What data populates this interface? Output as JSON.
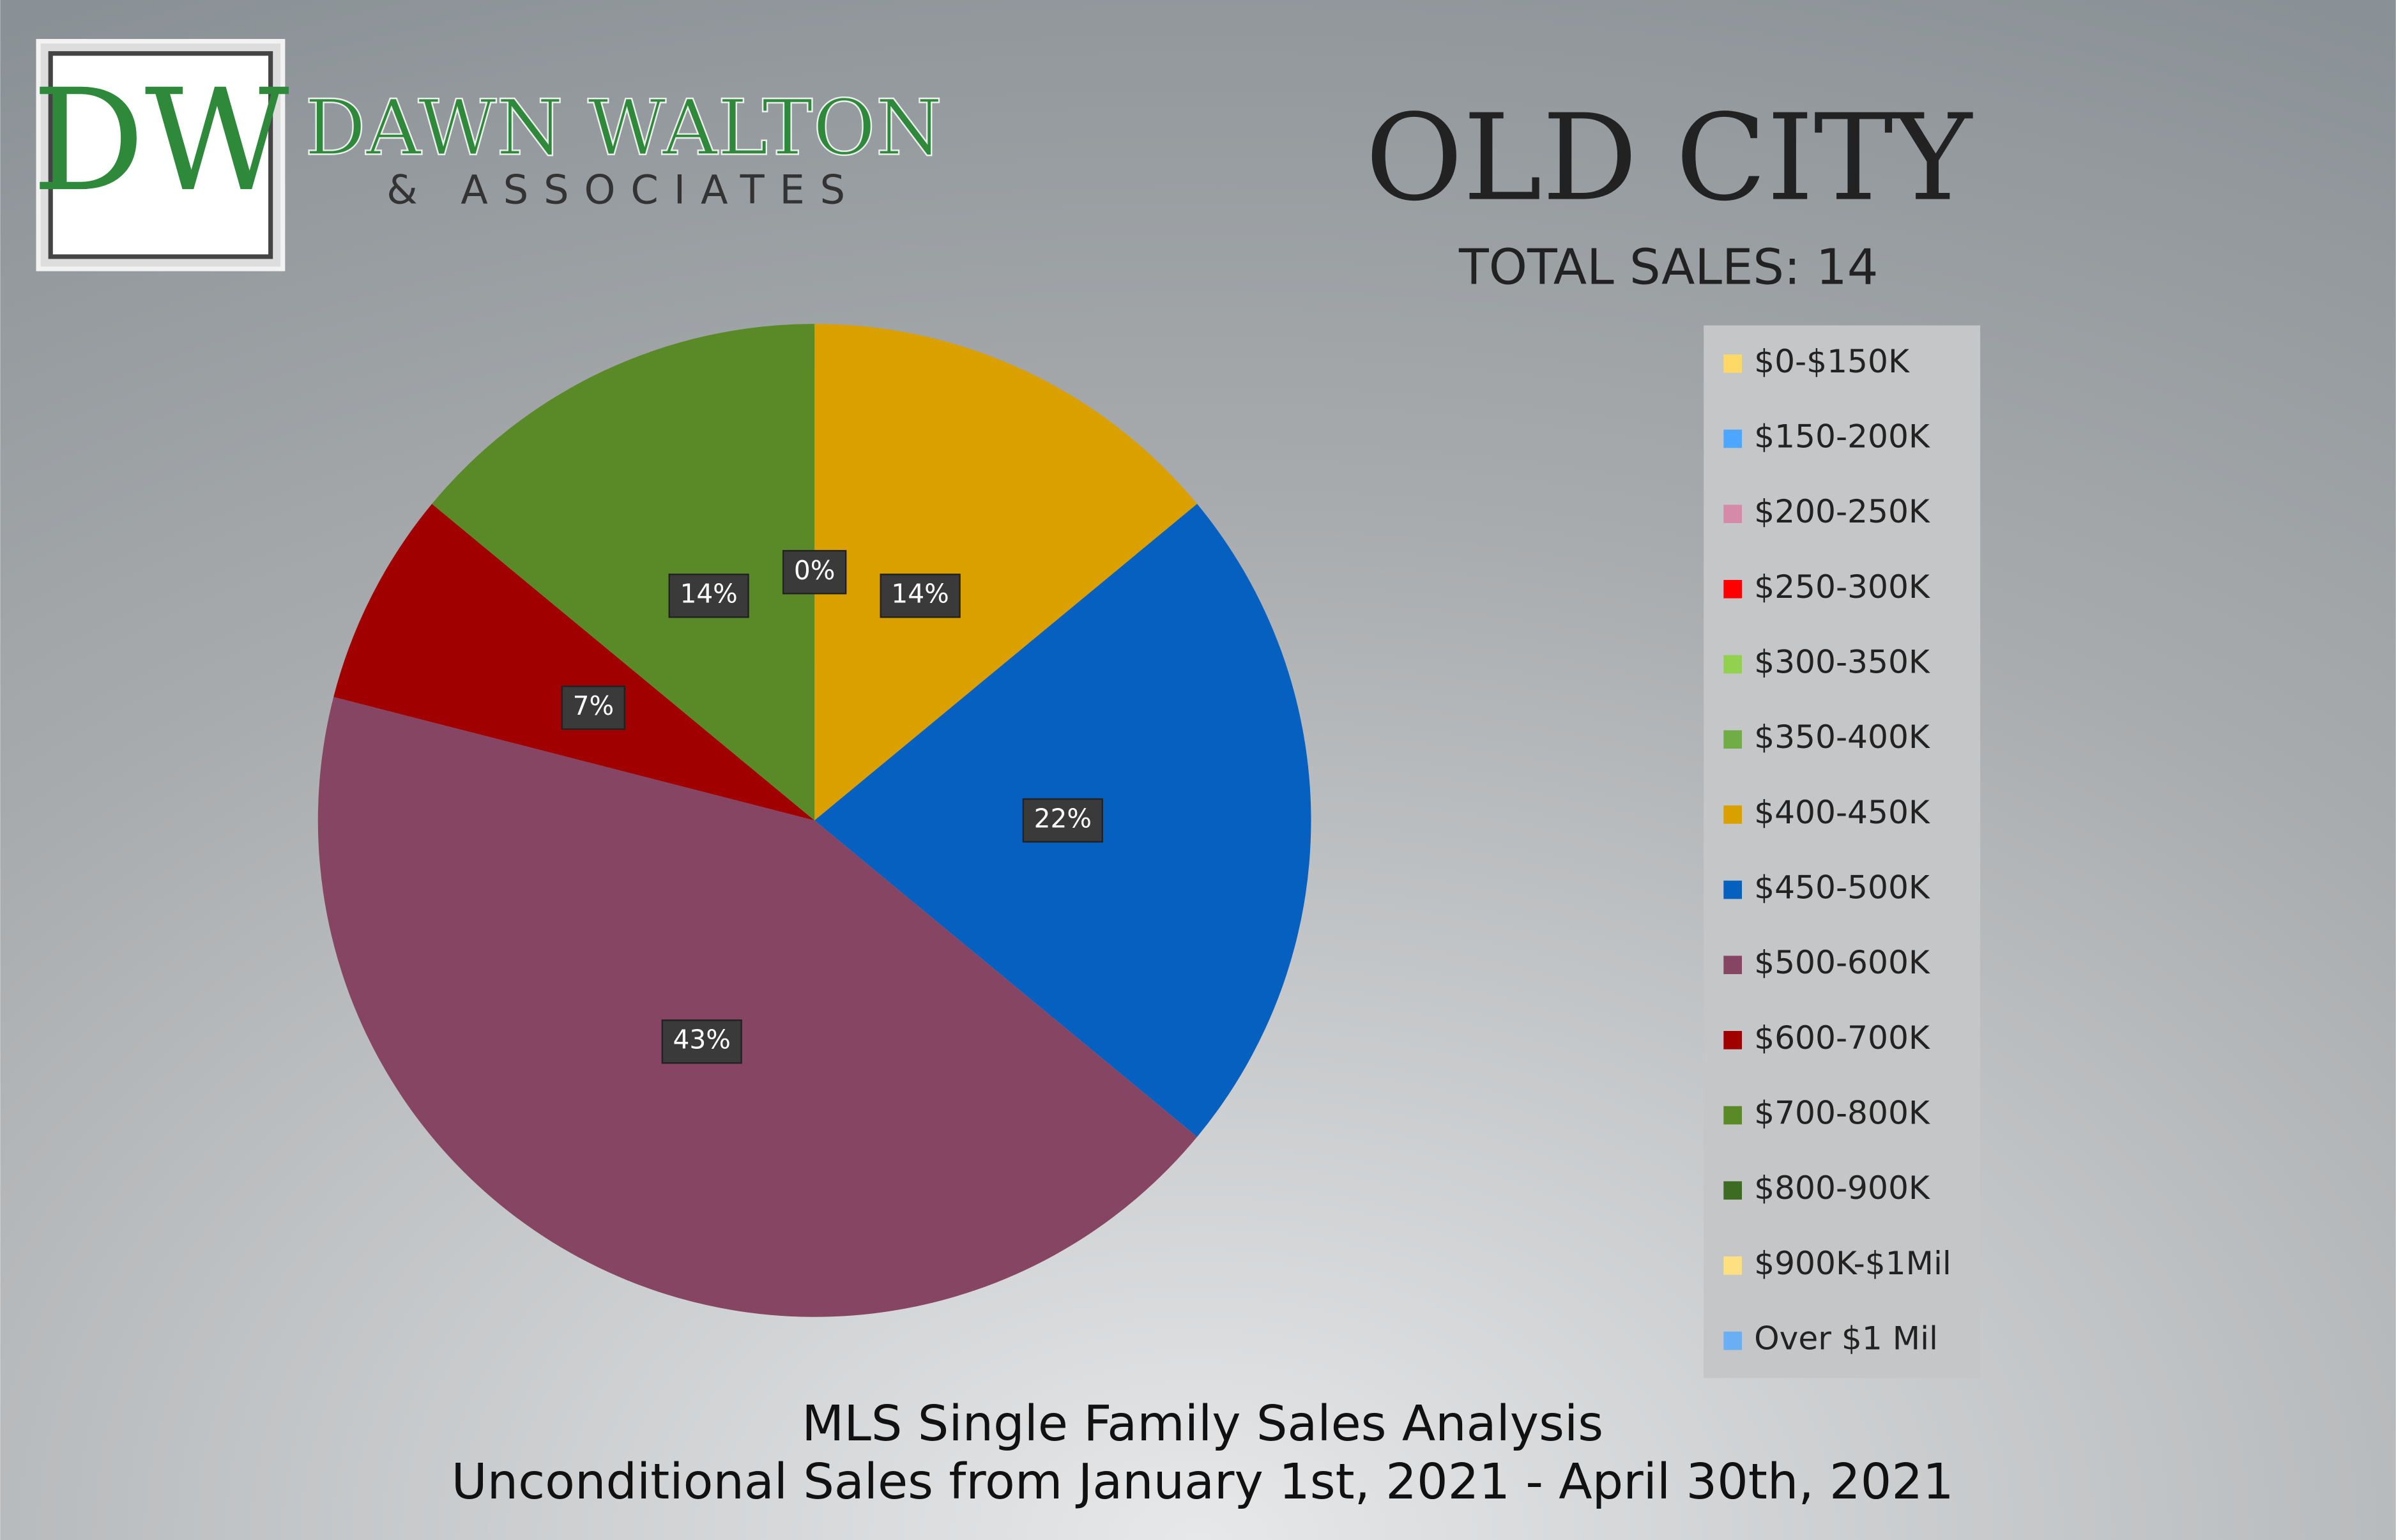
{
  "branding": {
    "monogram": "DW",
    "name": "DAWN WALTON",
    "tagline": "& ASSOCIATES"
  },
  "chart_data": {
    "type": "pie",
    "title": "OLD CITY",
    "subtitle": "TOTAL SALES: 14",
    "footer": [
      "MLS Single Family Sales Analysis",
      "Unconditional Sales from January 1st, 2021 - April 30th, 2021"
    ],
    "categories": [
      "$0-$150K",
      "$150-200K",
      "$200-250K",
      "$250-300K",
      "$300-350K",
      "$350-400K",
      "$400-450K",
      "$450-500K",
      "$500-600K",
      "$600-700K",
      "$700-800K",
      "$800-900K",
      "$900K-$1Mil",
      "Over $1 Mil"
    ],
    "values": [
      0,
      0,
      0,
      0,
      0,
      0,
      14,
      22,
      43,
      7,
      14,
      0,
      0,
      0
    ],
    "value_labels": [
      null,
      null,
      null,
      null,
      null,
      null,
      "14%",
      "22%",
      "43%",
      "7%",
      "14%",
      "0%",
      null,
      null
    ],
    "colors": [
      "#ffd966",
      "#4da6ff",
      "#d48aa8",
      "#ff0000",
      "#92d050",
      "#70ad47",
      "#d9a000",
      "#0560bf",
      "#874564",
      "#a00000",
      "#5a8a28",
      "#3d6b21",
      "#ffe080",
      "#6aaef5"
    ],
    "legend": "right"
  }
}
